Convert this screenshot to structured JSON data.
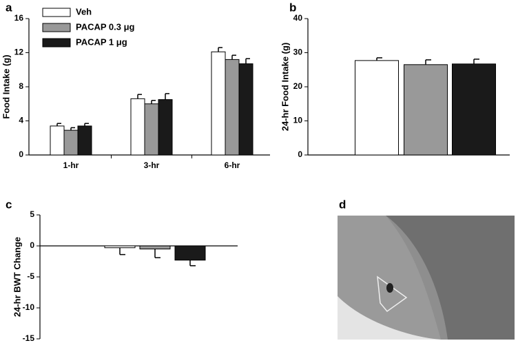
{
  "chart_data": [
    {
      "type": "bar",
      "panel": "a",
      "ylabel": "Food Intake (g)",
      "categories": [
        "1-hr",
        "3-hr",
        "6-hr"
      ],
      "series": [
        {
          "name": "Veh",
          "color": "#ffffff",
          "values": [
            3.4,
            6.6,
            12.1
          ],
          "errors": [
            0.3,
            0.5,
            0.5
          ]
        },
        {
          "name": "PACAP 0.3 μg",
          "color": "#999999",
          "values": [
            2.9,
            6.0,
            11.2
          ],
          "errors": [
            0.3,
            0.4,
            0.5
          ]
        },
        {
          "name": "PACAP 1 μg",
          "color": "#1a1a1a",
          "values": [
            3.4,
            6.5,
            10.7
          ],
          "errors": [
            0.3,
            0.7,
            0.6
          ]
        }
      ],
      "ylim": [
        0,
        16
      ],
      "yticks": [
        0,
        4,
        8,
        12,
        16
      ],
      "legend": "upper left"
    },
    {
      "type": "bar",
      "panel": "b",
      "ylabel": "24-hr Food Intake (g)",
      "values": [
        27.7,
        26.5,
        26.7
      ],
      "errors": [
        0.8,
        1.4,
        1.4
      ],
      "colors": [
        "#ffffff",
        "#999999",
        "#1a1a1a"
      ],
      "ylim": [
        0,
        40
      ],
      "yticks": [
        0,
        10,
        20,
        30,
        40
      ]
    },
    {
      "type": "bar",
      "panel": "c",
      "ylabel": "24-hr BWT Change",
      "values": [
        -0.3,
        -0.5,
        -2.3
      ],
      "errors": [
        1.1,
        1.4,
        0.9
      ],
      "colors": [
        "#ffffff",
        "#999999",
        "#1a1a1a"
      ],
      "ylim": [
        -15,
        5
      ],
      "yticks": [
        -15,
        -10,
        -5,
        0,
        5
      ]
    },
    {
      "type": "image",
      "panel": "d"
    }
  ]
}
